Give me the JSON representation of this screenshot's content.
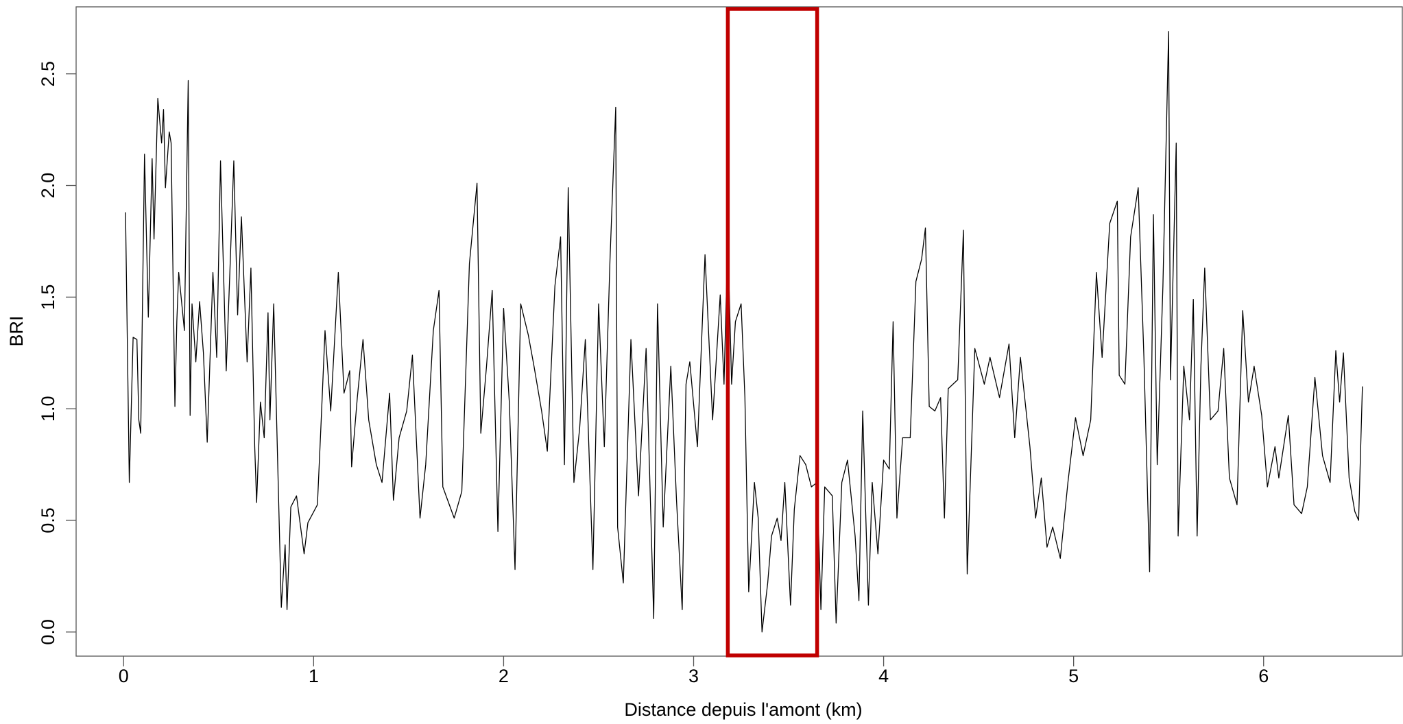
{
  "chart_data": {
    "type": "line",
    "xlabel": "Distance depuis l'amont (km)",
    "ylabel": "BRI",
    "color": "#000000",
    "x": [
      0.01,
      0.03,
      0.05,
      0.07,
      0.08,
      0.09,
      0.11,
      0.13,
      0.15,
      0.16,
      0.18,
      0.2,
      0.21,
      0.22,
      0.24,
      0.25,
      0.27,
      0.28,
      0.29,
      0.32,
      0.34,
      0.35,
      0.36,
      0.38,
      0.4,
      0.42,
      0.44,
      0.47,
      0.49,
      0.51,
      0.54,
      0.56,
      0.58,
      0.6,
      0.62,
      0.65,
      0.67,
      0.69,
      0.7,
      0.72,
      0.74,
      0.76,
      0.77,
      0.79,
      0.83,
      0.85,
      0.86,
      0.88,
      0.91,
      0.95,
      0.97,
      1.02,
      1.04,
      1.06,
      1.09,
      1.13,
      1.16,
      1.19,
      1.2,
      1.23,
      1.26,
      1.29,
      1.33,
      1.36,
      1.4,
      1.42,
      1.45,
      1.49,
      1.52,
      1.56,
      1.59,
      1.63,
      1.66,
      1.68,
      1.74,
      1.78,
      1.82,
      1.86,
      1.88,
      1.91,
      1.94,
      1.97,
      2.0,
      2.03,
      2.06,
      2.09,
      2.13,
      2.16,
      2.2,
      2.23,
      2.27,
      2.3,
      2.32,
      2.34,
      2.37,
      2.4,
      2.43,
      2.47,
      2.5,
      2.53,
      2.56,
      2.59,
      2.6,
      2.63,
      2.67,
      2.71,
      2.75,
      2.79,
      2.81,
      2.84,
      2.88,
      2.91,
      2.94,
      2.96,
      2.98,
      3.02,
      3.06,
      3.1,
      3.14,
      3.16,
      3.18,
      3.2,
      3.22,
      3.25,
      3.27,
      3.29,
      3.32,
      3.34,
      3.36,
      3.39,
      3.41,
      3.44,
      3.46,
      3.48,
      3.51,
      3.53,
      3.56,
      3.59,
      3.62,
      3.65,
      3.67,
      3.69,
      3.73,
      3.75,
      3.78,
      3.81,
      3.85,
      3.87,
      3.89,
      3.92,
      3.94,
      3.97,
      4.0,
      4.03,
      4.05,
      4.07,
      4.1,
      4.14,
      4.17,
      4.2,
      4.22,
      4.24,
      4.27,
      4.3,
      4.32,
      4.34,
      4.39,
      4.42,
      4.44,
      4.48,
      4.53,
      4.56,
      4.61,
      4.66,
      4.69,
      4.72,
      4.77,
      4.8,
      4.83,
      4.86,
      4.89,
      4.93,
      4.97,
      5.01,
      5.05,
      5.09,
      5.12,
      5.15,
      5.19,
      5.23,
      5.24,
      5.27,
      5.3,
      5.34,
      5.37,
      5.4,
      5.42,
      5.44,
      5.47,
      5.5,
      5.51,
      5.54,
      5.55,
      5.58,
      5.61,
      5.63,
      5.65,
      5.67,
      5.69,
      5.72,
      5.76,
      5.79,
      5.82,
      5.86,
      5.89,
      5.92,
      5.95,
      5.99,
      6.02,
      6.06,
      6.08,
      6.13,
      6.16,
      6.2,
      6.23,
      6.27,
      6.31,
      6.35,
      6.38,
      6.4,
      6.42,
      6.45,
      6.48,
      6.5,
      6.52
    ],
    "values": [
      1.88,
      0.67,
      1.32,
      1.31,
      0.95,
      0.89,
      2.14,
      1.41,
      2.12,
      1.76,
      2.39,
      2.19,
      2.34,
      1.99,
      2.24,
      2.19,
      1.01,
      1.39,
      1.61,
      1.35,
      2.47,
      0.97,
      1.47,
      1.21,
      1.48,
      1.25,
      0.85,
      1.61,
      1.23,
      2.11,
      1.17,
      1.63,
      2.11,
      1.42,
      1.86,
      1.21,
      1.63,
      0.83,
      0.58,
      1.03,
      0.87,
      1.43,
      0.95,
      1.47,
      0.11,
      0.39,
      0.1,
      0.56,
      0.61,
      0.35,
      0.49,
      0.57,
      0.95,
      1.35,
      0.99,
      1.61,
      1.07,
      1.17,
      0.74,
      1.05,
      1.31,
      0.95,
      0.75,
      0.67,
      1.07,
      0.59,
      0.87,
      0.99,
      1.24,
      0.51,
      0.75,
      1.35,
      1.53,
      0.65,
      0.51,
      0.63,
      1.65,
      2.01,
      0.89,
      1.19,
      1.53,
      0.45,
      1.45,
      1.03,
      0.28,
      1.47,
      1.33,
      1.19,
      0.99,
      0.81,
      1.55,
      1.77,
      0.75,
      1.99,
      0.67,
      0.91,
      1.31,
      0.28,
      1.47,
      0.83,
      1.67,
      2.35,
      0.47,
      0.22,
      1.31,
      0.61,
      1.27,
      0.06,
      1.47,
      0.47,
      1.19,
      0.59,
      0.1,
      1.11,
      1.21,
      0.83,
      1.69,
      0.95,
      1.51,
      1.11,
      1.77,
      1.11,
      1.39,
      1.47,
      1.05,
      0.18,
      0.67,
      0.51,
      0.0,
      0.22,
      0.43,
      0.51,
      0.41,
      0.67,
      0.12,
      0.55,
      0.79,
      0.75,
      0.65,
      0.67,
      0.1,
      0.65,
      0.61,
      0.04,
      0.67,
      0.77,
      0.43,
      0.14,
      0.99,
      0.12,
      0.67,
      0.35,
      0.77,
      0.73,
      1.39,
      0.51,
      0.87,
      0.87,
      1.57,
      1.67,
      1.81,
      1.01,
      0.99,
      1.05,
      0.51,
      1.09,
      1.13,
      1.8,
      0.26,
      1.27,
      1.11,
      1.23,
      1.05,
      1.29,
      0.87,
      1.23,
      0.83,
      0.51,
      0.69,
      0.38,
      0.47,
      0.33,
      0.67,
      0.96,
      0.79,
      0.95,
      1.61,
      1.23,
      1.83,
      1.93,
      1.15,
      1.11,
      1.77,
      1.99,
      1.23,
      0.27,
      1.87,
      0.75,
      1.55,
      2.69,
      1.13,
      2.19,
      0.43,
      1.19,
      0.95,
      1.49,
      0.43,
      1.19,
      1.63,
      0.95,
      0.99,
      1.27,
      0.69,
      0.57,
      1.44,
      1.03,
      1.19,
      0.97,
      0.65,
      0.83,
      0.69,
      0.97,
      0.57,
      0.53,
      0.65,
      1.14,
      0.79,
      0.67,
      1.26,
      1.03,
      1.25,
      0.69,
      0.54,
      0.5,
      1.1
    ],
    "xlim": [
      -0.25,
      6.73
    ],
    "ylim": [
      -0.108,
      2.8
    ],
    "xticks": [
      0,
      1,
      2,
      3,
      4,
      5,
      6
    ],
    "yticks": [
      {
        "value": 0,
        "label": "0.0"
      },
      0.5,
      {
        "value": 1,
        "label": "1.0"
      },
      1.5,
      {
        "value": 2,
        "label": "2.0"
      },
      2.5
    ],
    "highlight": {
      "xlim": [
        3.18,
        3.65
      ],
      "color": "#c00000"
    }
  }
}
